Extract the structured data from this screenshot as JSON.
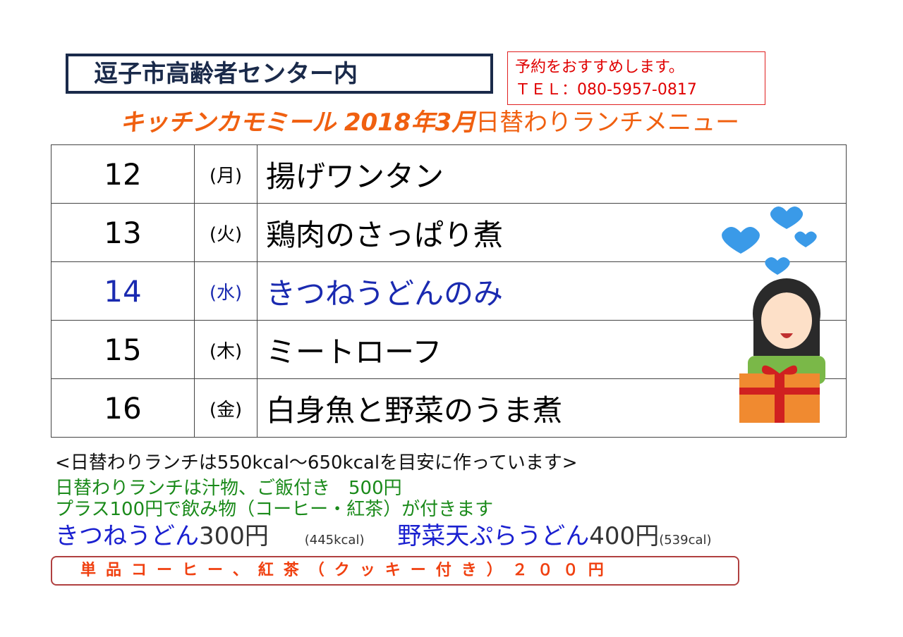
{
  "header": {
    "location": "逗子市高齢者センター内",
    "reservation": "予約をおすすめします。",
    "tel": "ＴＥＬ：080-5957-0817",
    "title_brand": "キッチンカモミール 2018年3月",
    "title_rest": "日替わりランチメニュー"
  },
  "menu": [
    {
      "day": "12",
      "weekday": "(月)",
      "dish": "揚げワンタン"
    },
    {
      "day": "13",
      "weekday": "(火)",
      "dish": "鶏肉のさっぱり煮"
    },
    {
      "day": "14",
      "weekday": "(水)",
      "dish": "きつねうどんのみ"
    },
    {
      "day": "15",
      "weekday": "(木)",
      "dish": "ミートローフ"
    },
    {
      "day": "16",
      "weekday": "(金)",
      "dish": "白身魚と野菜のうま煮"
    }
  ],
  "notes": {
    "calorie": "<日替わりランチは550kcal～650kcalを目安に作っています>",
    "price": "日替わりランチは汁物、ご飯付き　500円",
    "drink": "プラス100円で飲み物（コーヒー・紅茶）が付きます",
    "udon1_name": "きつねうどん",
    "udon1_price": "300円",
    "udon1_cal": "(445kcal)",
    "udon2_name": "野菜天ぷらうどん",
    "udon2_price": "400円",
    "udon2_cal": "(539cal)",
    "single": "単品コーヒー、紅茶（クッキー付き）２００円"
  },
  "colors": {
    "brand": "#f06010",
    "highlight": "#1a2ab0",
    "green": "#1a8a1a",
    "red": "#e00000"
  }
}
